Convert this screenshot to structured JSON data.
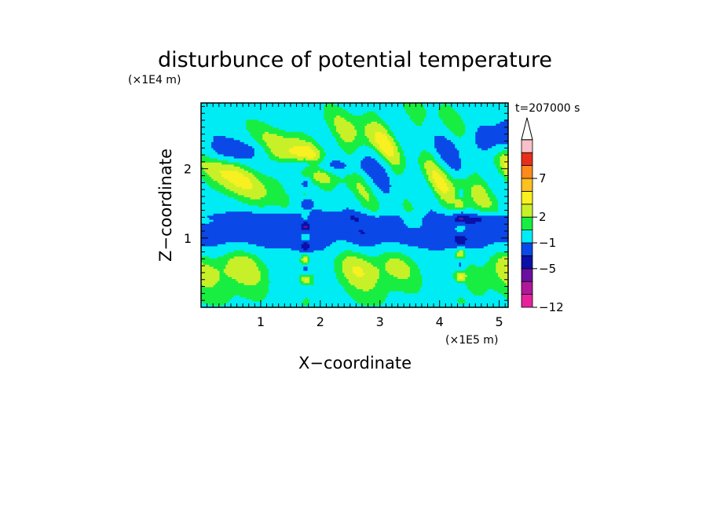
{
  "chart_data": {
    "type": "heatmap",
    "title": "disturbunce of potential temperature",
    "xlabel": "X−coordinate",
    "ylabel": "Z−coordinate",
    "x_unit": "(×1E5 m)",
    "y_unit": "(×1E4 m)",
    "time_label": "t=207000 s",
    "xlim": [
      0,
      5.15
    ],
    "ylim": [
      0,
      2.95
    ],
    "x_ticks": [
      {
        "value": 1,
        "label": "1"
      },
      {
        "value": 2,
        "label": "2"
      },
      {
        "value": 3,
        "label": "3"
      },
      {
        "value": 4,
        "label": "4"
      },
      {
        "value": 5,
        "label": "5"
      }
    ],
    "y_ticks": [
      {
        "value": 1,
        "label": "1"
      },
      {
        "value": 2,
        "label": "2"
      }
    ],
    "colorbar": {
      "levels": [
        -12,
        -9,
        -7,
        -5,
        -3,
        -1,
        1,
        2,
        3,
        5,
        7,
        9,
        11
      ],
      "labels": [
        {
          "value": -12,
          "label": "−12"
        },
        {
          "value": -5,
          "label": "−5"
        },
        {
          "value": -1,
          "label": "−1"
        },
        {
          "value": 2,
          "label": "2"
        },
        {
          "value": 7,
          "label": "7"
        }
      ],
      "colors": [
        "#e7229c",
        "#b0189a",
        "#6a0fa0",
        "#0a10a8",
        "#0a48e8",
        "#00ecf4",
        "#18ee42",
        "#c8f028",
        "#f8f020",
        "#fcc020",
        "#fc8a1c",
        "#e82e1c",
        "#f8c0c8"
      ],
      "extend": "max"
    }
  }
}
